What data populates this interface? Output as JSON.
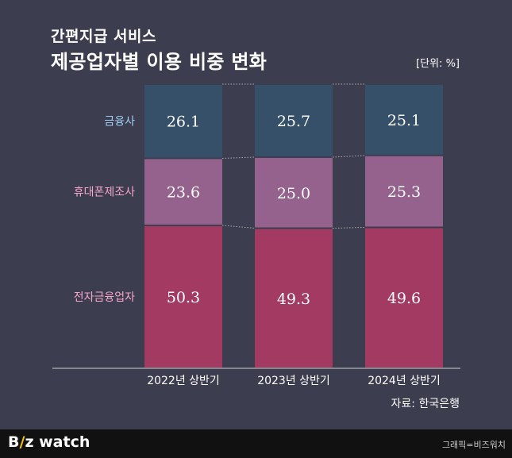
{
  "header": {
    "title_line1": "간편지급 서비스",
    "title_line2": "제공업자별 이용 비중 변화",
    "unit": "[단위: %]"
  },
  "source": "자료: 한국은행",
  "footer": {
    "logo_b": "B",
    "logo_slash": "/",
    "logo_z": "z",
    "logo_watch": " watch",
    "credit": "그래픽=비즈워치"
  },
  "chart_data": {
    "type": "bar",
    "stacked": true,
    "categories": [
      "2022년 상반기",
      "2023년 상반기",
      "2024년 상반기"
    ],
    "series": [
      {
        "name": "전자금융업자",
        "values": [
          50.3,
          49.3,
          49.6
        ],
        "color": "#a23a62",
        "label_color": "#f4a6c8"
      },
      {
        "name": "휴대폰제조사",
        "values": [
          23.6,
          25.0,
          25.3
        ],
        "color": "#94628c",
        "label_color": "#f4a6c8"
      },
      {
        "name": "금융사",
        "values": [
          26.1,
          25.7,
          25.1
        ],
        "color": "#36506a",
        "label_color": "#9fd0f0"
      }
    ],
    "ylim": [
      0,
      100
    ],
    "connector_lines": true
  }
}
